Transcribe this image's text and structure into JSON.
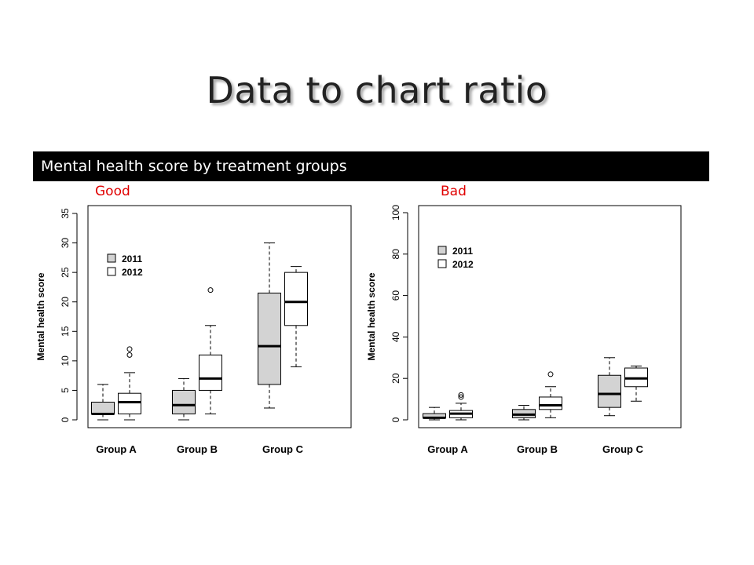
{
  "slide": {
    "title": "Data to chart ratio",
    "banner": "Mental health score by treatment groups",
    "label_good": "Good",
    "label_bad": "Bad"
  },
  "colors": {
    "fill_2011": "#d3d3d3",
    "fill_2012": "#ffffff",
    "label": "#e00000"
  },
  "chart_data": [
    {
      "type": "box",
      "ylabel": "Mental health score",
      "ylim": [
        0,
        35
      ],
      "yticks": [
        0,
        5,
        10,
        15,
        20,
        25,
        30,
        35
      ],
      "categories": [
        "Group A",
        "Group B",
        "Group C"
      ],
      "legend": {
        "position": "top-left",
        "entries": [
          "2011",
          "2012"
        ]
      },
      "series": [
        {
          "name": "2011",
          "boxes": [
            {
              "low": 0,
              "q1": 1,
              "median": 1,
              "q3": 3,
              "high": 6,
              "outliers": []
            },
            {
              "low": 0,
              "q1": 1,
              "median": 2.5,
              "q3": 5,
              "high": 7,
              "outliers": []
            },
            {
              "low": 2,
              "q1": 6,
              "median": 12.5,
              "q3": 21.5,
              "high": 30,
              "outliers": []
            }
          ]
        },
        {
          "name": "2012",
          "boxes": [
            {
              "low": 0,
              "q1": 1,
              "median": 3,
              "q3": 4.5,
              "high": 8,
              "outliers": [
                11,
                12
              ]
            },
            {
              "low": 1,
              "q1": 5,
              "median": 7,
              "q3": 11,
              "high": 16,
              "outliers": [
                22
              ]
            },
            {
              "low": 9,
              "q1": 16,
              "median": 20,
              "q3": 25,
              "high": 26,
              "outliers": []
            }
          ]
        }
      ]
    },
    {
      "type": "box",
      "ylabel": "Mental health score",
      "ylim": [
        0,
        100
      ],
      "yticks": [
        0,
        20,
        40,
        60,
        80,
        100
      ],
      "categories": [
        "Group A",
        "Group B",
        "Group C"
      ],
      "legend": {
        "position": "top-left",
        "entries": [
          "2011",
          "2012"
        ]
      },
      "series": [
        {
          "name": "2011",
          "boxes": [
            {
              "low": 0,
              "q1": 1,
              "median": 1,
              "q3": 3,
              "high": 6,
              "outliers": []
            },
            {
              "low": 0,
              "q1": 1,
              "median": 2.5,
              "q3": 5,
              "high": 7,
              "outliers": []
            },
            {
              "low": 2,
              "q1": 6,
              "median": 12.5,
              "q3": 21.5,
              "high": 30,
              "outliers": []
            }
          ]
        },
        {
          "name": "2012",
          "boxes": [
            {
              "low": 0,
              "q1": 1,
              "median": 3,
              "q3": 4.5,
              "high": 8,
              "outliers": [
                11,
                12
              ]
            },
            {
              "low": 1,
              "q1": 5,
              "median": 7,
              "q3": 11,
              "high": 16,
              "outliers": [
                22
              ]
            },
            {
              "low": 9,
              "q1": 16,
              "median": 20,
              "q3": 25,
              "high": 26,
              "outliers": []
            }
          ]
        }
      ]
    }
  ]
}
